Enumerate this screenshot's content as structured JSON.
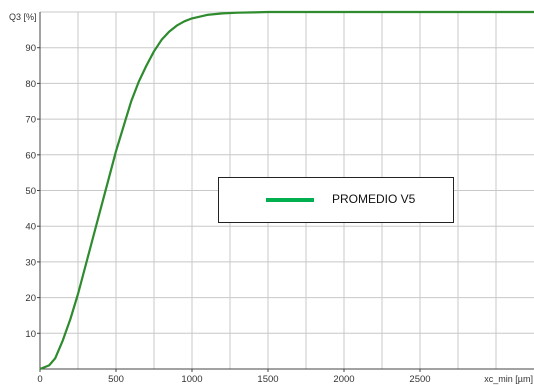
{
  "chart_data": {
    "type": "line",
    "title": "",
    "xlabel": "xc_min [µm]",
    "ylabel": "Q3 [%]",
    "xlim": [
      0,
      3250
    ],
    "ylim": [
      0,
      100
    ],
    "x_ticks": [
      0,
      500,
      1000,
      1500,
      2000,
      2500
    ],
    "x_tick_labels": [
      "0",
      "500",
      "1000",
      "1500",
      "2000",
      "2500"
    ],
    "y_ticks": [
      10,
      20,
      30,
      40,
      50,
      60,
      70,
      80,
      90
    ],
    "y_tick_labels": [
      "10",
      "20",
      "30",
      "40",
      "50",
      "60",
      "70",
      "80",
      "90"
    ],
    "grid": true,
    "legend": {
      "placement": "center-right",
      "entries": [
        "PROMEDIO  V5"
      ]
    },
    "series": [
      {
        "name": "PROMEDIO  V5",
        "color": "#2e8b2e",
        "x": [
          0,
          60,
          100,
          150,
          200,
          250,
          300,
          350,
          400,
          450,
          500,
          550,
          600,
          650,
          700,
          750,
          800,
          850,
          900,
          950,
          1000,
          1100,
          1200,
          1300,
          1400,
          1500,
          1750,
          2000,
          2500,
          3000,
          3250
        ],
        "y": [
          0,
          1,
          3,
          8,
          14,
          21,
          29,
          37,
          45,
          53,
          61,
          68,
          75,
          80.5,
          85,
          89,
          92.2,
          94.5,
          96.2,
          97.4,
          98.2,
          99.2,
          99.6,
          99.8,
          99.9,
          100,
          100,
          100,
          100,
          100,
          100
        ]
      }
    ]
  },
  "legend_swatch_color": "#00b050"
}
